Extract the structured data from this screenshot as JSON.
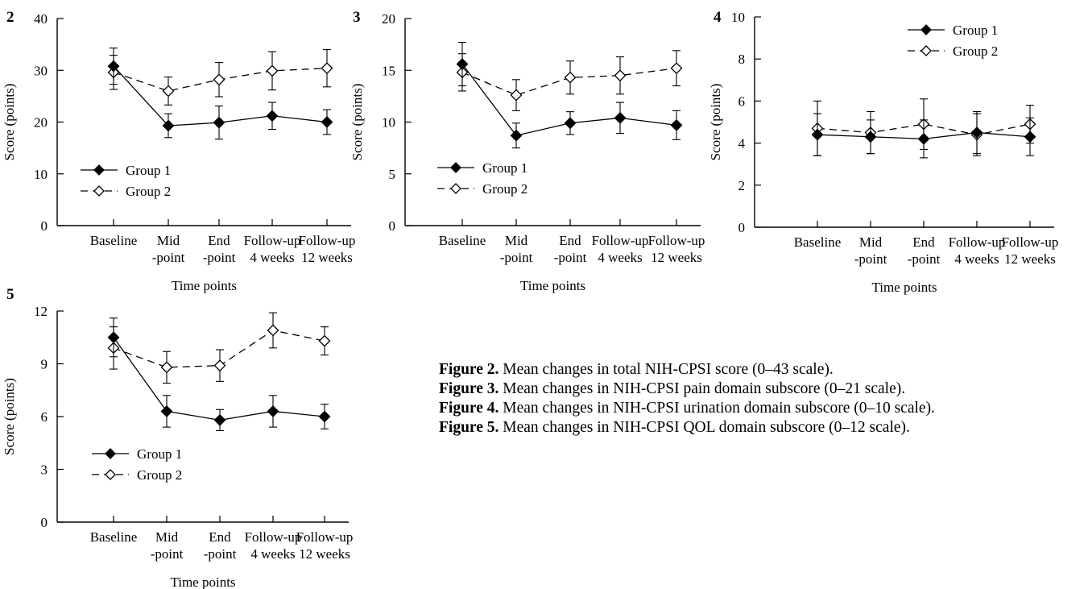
{
  "chart_data": [
    {
      "type": "line",
      "panel_label": "2",
      "ylabel": "Score (points)",
      "xlabel": "Time points",
      "categories": [
        [
          "Baseline"
        ],
        [
          "Mid",
          "-point"
        ],
        [
          "End",
          "-point"
        ],
        [
          "Follow-up",
          "4 weeks"
        ],
        [
          "Follow-up",
          "12 weeks"
        ]
      ],
      "ylim": [
        0,
        40
      ],
      "yticks": [
        0,
        10,
        20,
        30,
        40
      ],
      "legend_position": "bottom-left",
      "series": [
        {
          "name": "Group 1",
          "marker": "filled-diamond",
          "line": "solid",
          "values": [
            30.8,
            19.3,
            19.9,
            21.2,
            20.0
          ],
          "errors": [
            3.5,
            2.3,
            3.2,
            2.6,
            2.4
          ]
        },
        {
          "name": "Group 2",
          "marker": "open-diamond",
          "line": "dashed",
          "values": [
            29.6,
            26.0,
            28.2,
            29.9,
            30.4
          ],
          "errors": [
            3.3,
            2.7,
            3.3,
            3.7,
            3.6
          ]
        }
      ]
    },
    {
      "type": "line",
      "panel_label": "3",
      "ylabel": "Score (points)",
      "xlabel": "Time points",
      "categories": [
        [
          "Baseline"
        ],
        [
          "Mid",
          "-point"
        ],
        [
          "End",
          "-point"
        ],
        [
          "Follow-up",
          "4 weeks"
        ],
        [
          "Follow-up",
          "12 weeks"
        ]
      ],
      "ylim": [
        0,
        20
      ],
      "yticks": [
        0,
        5,
        10,
        15,
        20
      ],
      "legend_position": "bottom-left",
      "series": [
        {
          "name": "Group 1",
          "marker": "filled-diamond",
          "line": "solid",
          "values": [
            15.6,
            8.7,
            9.9,
            10.4,
            9.7
          ],
          "errors": [
            2.1,
            1.2,
            1.1,
            1.5,
            1.4
          ]
        },
        {
          "name": "Group 2",
          "marker": "open-diamond",
          "line": "dashed",
          "values": [
            14.8,
            12.6,
            14.3,
            14.5,
            15.2
          ],
          "errors": [
            1.8,
            1.5,
            1.6,
            1.8,
            1.7
          ]
        }
      ]
    },
    {
      "type": "line",
      "panel_label": "4",
      "ylabel": "Score (points)",
      "xlabel": "Time points",
      "categories": [
        [
          "Baseline"
        ],
        [
          "Mid",
          "-point"
        ],
        [
          "End",
          "-point"
        ],
        [
          "Follow-up",
          "4 weeks"
        ],
        [
          "Follow-up",
          "12 weeks"
        ]
      ],
      "ylim": [
        0,
        10
      ],
      "yticks": [
        0,
        2,
        4,
        6,
        8,
        10
      ],
      "legend_position": "top-right",
      "series": [
        {
          "name": "Group 1",
          "marker": "filled-diamond",
          "line": "solid",
          "values": [
            4.4,
            4.3,
            4.2,
            4.5,
            4.3
          ],
          "errors": [
            1.0,
            0.8,
            0.9,
            1.0,
            0.9
          ]
        },
        {
          "name": "Group 2",
          "marker": "open-diamond",
          "line": "dashed",
          "values": [
            4.7,
            4.5,
            4.9,
            4.4,
            4.9
          ],
          "errors": [
            1.3,
            1.0,
            1.2,
            1.0,
            0.9
          ]
        }
      ]
    },
    {
      "type": "line",
      "panel_label": "5",
      "ylabel": "Score (points)",
      "xlabel": "Time points",
      "categories": [
        [
          "Baseline"
        ],
        [
          "Mid",
          "-point"
        ],
        [
          "End",
          "-point"
        ],
        [
          "Follow-up",
          "4 weeks"
        ],
        [
          "Follow-up",
          "12 weeks"
        ]
      ],
      "ylim": [
        0,
        12
      ],
      "yticks": [
        0,
        3,
        6,
        9,
        12
      ],
      "legend_position": "bottom-left",
      "series": [
        {
          "name": "Group 1",
          "marker": "filled-diamond",
          "line": "solid",
          "values": [
            10.5,
            6.3,
            5.8,
            6.3,
            6.0
          ],
          "errors": [
            1.1,
            0.9,
            0.6,
            0.9,
            0.7
          ]
        },
        {
          "name": "Group 2",
          "marker": "open-diamond",
          "line": "dashed",
          "values": [
            9.9,
            8.8,
            8.9,
            10.9,
            10.3
          ],
          "errors": [
            1.2,
            0.9,
            0.9,
            1.0,
            0.8
          ]
        }
      ]
    }
  ],
  "captions": [
    {
      "label": "Figure 2.",
      "text": " Mean changes in total NIH-CPSI score (0–43 scale)."
    },
    {
      "label": "Figure 3.",
      "text": " Mean changes in NIH-CPSI pain domain subscore (0–21 scale)."
    },
    {
      "label": "Figure 4.",
      "text": " Mean changes in NIH-CPSI urination domain subscore (0–10 scale)."
    },
    {
      "label": "Figure 5.",
      "text": " Mean changes in NIH-CPSI QOL domain subscore (0–12 scale)."
    }
  ]
}
